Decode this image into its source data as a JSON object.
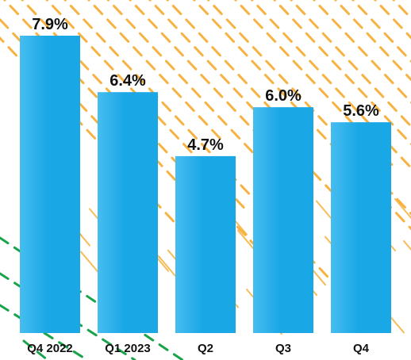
{
  "chart_data": {
    "type": "bar",
    "title": "",
    "xlabel": "",
    "ylabel": "",
    "ylim": [
      0,
      7.9
    ],
    "categories": [
      "Q4 2022",
      "Q1 2023",
      "Q2",
      "Q3",
      "Q4"
    ],
    "values": [
      7.9,
      6.4,
      4.7,
      6.0,
      5.6
    ],
    "value_labels": [
      "7.9%",
      "6.4%",
      "4.7%",
      "6.0%",
      "5.6%"
    ],
    "grid": false,
    "legend": "none",
    "bar_color": "#1aa7e6",
    "bar_highlight_color": "#46bdf0",
    "background_pattern": {
      "primary_stroke_color": "#f5a623",
      "secondary_stroke_color": "#1aa34a",
      "style": "dashed diagonal streaks"
    }
  }
}
